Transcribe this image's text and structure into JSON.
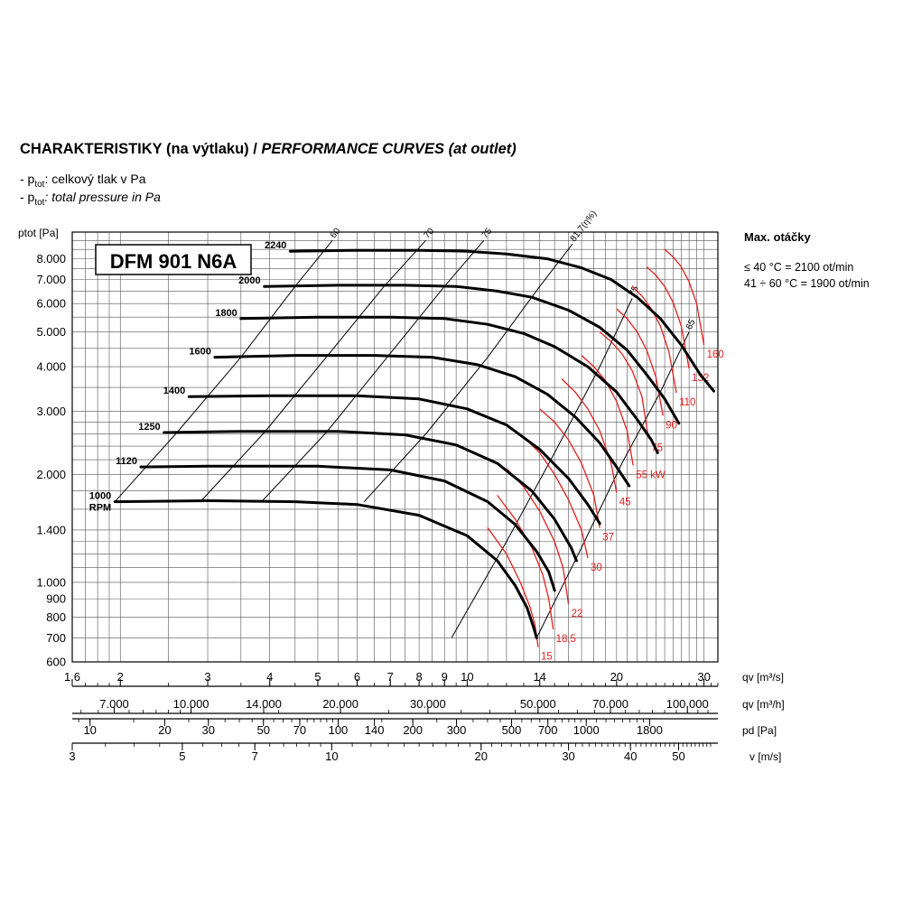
{
  "header": {
    "title_bold": "CHARAKTERISTIKY (na výtlaku) /",
    "title_italic": " PERFORMANCE CURVES (at outlet)",
    "legend_cz_prefix": "- p",
    "legend_cz_sub": "tot",
    "legend_cz_text": ": celkový tlak v Pa",
    "legend_en_prefix": "- p",
    "legend_en_sub": "tot",
    "legend_en_text": ": total pressure in Pa"
  },
  "max_speed": {
    "title": "Max. otáčky",
    "line1": "≤ 40 °C = 2100 ot/min",
    "line2": "41 ÷ 60 °C = 1900 ot/min"
  },
  "chart_data": {
    "type": "line",
    "title": "DFM 901 N6A",
    "y_axis_label": "ptot [Pa]",
    "y_scale": "log",
    "y_range": [
      600,
      9500
    ],
    "y_ticks": [
      600,
      700,
      800,
      900,
      1000,
      1400,
      2000,
      3000,
      4000,
      5000,
      6000,
      7000,
      8000
    ],
    "y_tick_labels": [
      "600",
      "700",
      "800",
      "900",
      "1.000",
      "1.400",
      "2.000",
      "3.000",
      "4.000",
      "5.000",
      "6.000",
      "7.000",
      "8.000"
    ],
    "x_scale": "log",
    "x_range": [
      1.6,
      32
    ],
    "x_axes": [
      {
        "label": "qv [m³/s]",
        "ticks": [
          1.6,
          2,
          3,
          4,
          5,
          6,
          7,
          8,
          9,
          10,
          14,
          20,
          30
        ],
        "tick_labels": [
          "1.6",
          "2",
          "3",
          "4",
          "5",
          "6",
          "7",
          "8",
          "9",
          "10",
          "14",
          "20",
          "30"
        ]
      },
      {
        "label": "qv [m³/h]",
        "ticks": [
          7000,
          10000,
          14000,
          20000,
          30000,
          50000,
          70000,
          100000
        ],
        "tick_labels": [
          "7.000",
          "10.000",
          "14.000",
          "20.000",
          "30.000",
          "50.000",
          "70.000",
          "100.000"
        ]
      },
      {
        "label": "pd [Pa]",
        "ticks": [
          10,
          20,
          30,
          50,
          70,
          100,
          140,
          200,
          300,
          500,
          700,
          1000,
          1800
        ],
        "tick_labels": [
          "10",
          "20",
          "30",
          "50",
          "70",
          "100",
          "140",
          "200",
          "300",
          "500",
          "700",
          "1000",
          "1800"
        ]
      },
      {
        "label": "v [m/s]",
        "ticks": [
          3,
          5,
          7,
          10,
          20,
          30,
          40,
          50
        ],
        "tick_labels": [
          "3",
          "5",
          "7",
          "10",
          "20",
          "30",
          "40",
          "50"
        ]
      }
    ],
    "speed_curves": [
      {
        "name": "2240",
        "start_pressure": 8400,
        "points": [
          [
            4.4,
            8400
          ],
          [
            6.0,
            8450
          ],
          [
            8.0,
            8450
          ],
          [
            10.0,
            8400
          ],
          [
            12.0,
            8250
          ],
          [
            14.5,
            8000
          ],
          [
            17.0,
            7550
          ],
          [
            19.5,
            7000
          ],
          [
            22.0,
            6250
          ],
          [
            24.5,
            5450
          ],
          [
            27.0,
            4600
          ],
          [
            29.5,
            3800
          ],
          [
            31.4,
            3420
          ]
        ]
      },
      {
        "name": "2000",
        "start_pressure": 6700,
        "points": [
          [
            3.9,
            6700
          ],
          [
            5.5,
            6750
          ],
          [
            7.5,
            6750
          ],
          [
            9.5,
            6700
          ],
          [
            11.5,
            6500
          ],
          [
            13.5,
            6250
          ],
          [
            16.0,
            5750
          ],
          [
            18.5,
            5150
          ],
          [
            21.0,
            4450
          ],
          [
            23.0,
            3800
          ],
          [
            25.0,
            3250
          ],
          [
            26.7,
            2780
          ]
        ]
      },
      {
        "name": "1800",
        "start_pressure": 5450,
        "points": [
          [
            3.5,
            5450
          ],
          [
            5.0,
            5500
          ],
          [
            7.0,
            5500
          ],
          [
            9.0,
            5450
          ],
          [
            11.0,
            5250
          ],
          [
            13.0,
            4950
          ],
          [
            15.0,
            4550
          ],
          [
            17.5,
            4000
          ],
          [
            20.0,
            3400
          ],
          [
            22.0,
            2850
          ],
          [
            23.5,
            2500
          ],
          [
            24.2,
            2300
          ]
        ]
      },
      {
        "name": "1600",
        "start_pressure": 4250,
        "points": [
          [
            3.1,
            4250
          ],
          [
            4.5,
            4300
          ],
          [
            6.5,
            4300
          ],
          [
            8.5,
            4250
          ],
          [
            10.5,
            4050
          ],
          [
            12.5,
            3750
          ],
          [
            14.5,
            3350
          ],
          [
            16.5,
            2900
          ],
          [
            18.5,
            2450
          ],
          [
            20.0,
            2100
          ],
          [
            21.2,
            1860
          ]
        ]
      },
      {
        "name": "1400",
        "start_pressure": 3300,
        "points": [
          [
            2.75,
            3300
          ],
          [
            4.0,
            3320
          ],
          [
            6.0,
            3320
          ],
          [
            8.0,
            3250
          ],
          [
            10.0,
            3050
          ],
          [
            12.0,
            2750
          ],
          [
            14.0,
            2350
          ],
          [
            16.0,
            1950
          ],
          [
            17.5,
            1650
          ],
          [
            18.5,
            1460
          ]
        ]
      },
      {
        "name": "1250",
        "start_pressure": 2620,
        "points": [
          [
            2.45,
            2620
          ],
          [
            3.5,
            2640
          ],
          [
            5.5,
            2640
          ],
          [
            7.5,
            2580
          ],
          [
            9.5,
            2420
          ],
          [
            11.5,
            2150
          ],
          [
            13.5,
            1800
          ],
          [
            15.0,
            1500
          ],
          [
            16.2,
            1250
          ],
          [
            16.6,
            1150
          ]
        ]
      },
      {
        "name": "1120",
        "start_pressure": 2100,
        "points": [
          [
            2.2,
            2100
          ],
          [
            3.0,
            2110
          ],
          [
            5.0,
            2110
          ],
          [
            7.0,
            2060
          ],
          [
            9.0,
            1920
          ],
          [
            11.0,
            1680
          ],
          [
            12.5,
            1450
          ],
          [
            13.8,
            1220
          ],
          [
            14.6,
            1070
          ],
          [
            15.0,
            950
          ]
        ]
      },
      {
        "name": "1000",
        "start_pressure": 1680,
        "points": [
          [
            1.95,
            1680
          ],
          [
            3.0,
            1690
          ],
          [
            4.5,
            1680
          ],
          [
            6.0,
            1650
          ],
          [
            8.0,
            1540
          ],
          [
            10.0,
            1350
          ],
          [
            11.5,
            1150
          ],
          [
            12.5,
            980
          ],
          [
            13.2,
            850
          ],
          [
            13.6,
            750
          ],
          [
            13.8,
            700
          ]
        ]
      }
    ],
    "rpm_unit_label": "RPM",
    "power_curves": [
      {
        "name": "15",
        "points": [
          [
            11.0,
            1420
          ],
          [
            12.0,
            1200
          ],
          [
            12.8,
            1000
          ],
          [
            13.4,
            850
          ],
          [
            13.7,
            760
          ],
          [
            13.9,
            660
          ]
        ]
      },
      {
        "name": "18,5",
        "points": [
          [
            11.5,
            1750
          ],
          [
            12.5,
            1500
          ],
          [
            13.5,
            1250
          ],
          [
            14.2,
            1050
          ],
          [
            14.6,
            900
          ],
          [
            14.9,
            740
          ]
        ]
      },
      {
        "name": "22",
        "points": [
          [
            12.0,
            2080
          ],
          [
            13.0,
            1850
          ],
          [
            14.0,
            1580
          ],
          [
            15.0,
            1300
          ],
          [
            15.6,
            1100
          ],
          [
            16.0,
            870
          ]
        ]
      },
      {
        "name": "30",
        "points": [
          [
            13.0,
            2540
          ],
          [
            14.0,
            2300
          ],
          [
            15.0,
            2000
          ],
          [
            16.0,
            1700
          ],
          [
            17.0,
            1400
          ],
          [
            17.5,
            1170
          ]
        ]
      },
      {
        "name": "37",
        "points": [
          [
            14.0,
            3050
          ],
          [
            15.0,
            2800
          ],
          [
            16.0,
            2500
          ],
          [
            17.0,
            2150
          ],
          [
            18.0,
            1750
          ],
          [
            18.5,
            1420
          ]
        ]
      },
      {
        "name": "45",
        "points": [
          [
            15.5,
            3700
          ],
          [
            16.5,
            3400
          ],
          [
            17.5,
            3050
          ],
          [
            18.5,
            2650
          ],
          [
            19.5,
            2150
          ],
          [
            20.0,
            1780
          ]
        ]
      },
      {
        "name": "55 kW",
        "points": [
          [
            17.0,
            4300
          ],
          [
            18.0,
            4000
          ],
          [
            19.0,
            3650
          ],
          [
            20.0,
            3200
          ],
          [
            21.0,
            2650
          ],
          [
            21.6,
            2120
          ]
        ]
      },
      {
        "name": "75",
        "points": [
          [
            18.5,
            5000
          ],
          [
            19.5,
            4700
          ],
          [
            20.5,
            4350
          ],
          [
            21.5,
            3900
          ],
          [
            22.5,
            3300
          ],
          [
            23.2,
            2520
          ]
        ]
      },
      {
        "name": "90",
        "points": [
          [
            20.0,
            5800
          ],
          [
            21.0,
            5450
          ],
          [
            22.0,
            5000
          ],
          [
            23.0,
            4450
          ],
          [
            24.0,
            3750
          ],
          [
            24.8,
            2920
          ]
        ]
      },
      {
        "name": "110",
        "points": [
          [
            21.5,
            6700
          ],
          [
            22.5,
            6300
          ],
          [
            23.5,
            5800
          ],
          [
            24.5,
            5200
          ],
          [
            25.5,
            4400
          ],
          [
            26.4,
            3380
          ]
        ]
      },
      {
        "name": "132",
        "points": [
          [
            23.0,
            7600
          ],
          [
            24.0,
            7200
          ],
          [
            25.0,
            6700
          ],
          [
            26.0,
            6050
          ],
          [
            27.0,
            5200
          ],
          [
            28.0,
            3950
          ]
        ]
      },
      {
        "name": "160",
        "points": [
          [
            25.0,
            8500
          ],
          [
            26.0,
            8100
          ],
          [
            27.0,
            7600
          ],
          [
            28.0,
            6900
          ],
          [
            29.0,
            6000
          ],
          [
            30.0,
            4600
          ]
        ]
      }
    ],
    "efficiency_lines": [
      {
        "name": "60",
        "points": [
          [
            1.95,
            1680
          ],
          [
            2.6,
            2620
          ],
          [
            3.5,
            4250
          ],
          [
            4.5,
            6700
          ],
          [
            5.35,
            9000
          ]
        ]
      },
      {
        "name": "70",
        "points": [
          [
            2.9,
            1680
          ],
          [
            3.9,
            2620
          ],
          [
            5.2,
            4250
          ],
          [
            6.8,
            6700
          ],
          [
            8.25,
            9000
          ]
        ]
      },
      {
        "name": "75",
        "points": [
          [
            3.85,
            1680
          ],
          [
            5.2,
            2620
          ],
          [
            6.9,
            4250
          ],
          [
            9.0,
            6700
          ],
          [
            10.8,
            9000
          ]
        ]
      },
      {
        "name": "81,7(η%)",
        "points": [
          [
            6.2,
            1680
          ],
          [
            8.3,
            2620
          ],
          [
            11.0,
            4250
          ],
          [
            14.0,
            6700
          ],
          [
            16.3,
            8800
          ]
        ]
      },
      {
        "name": "75",
        "points": [
          [
            9.3,
            700
          ],
          [
            12.0,
            1300
          ],
          [
            15.0,
            2300
          ],
          [
            18.5,
            4000
          ],
          [
            21.5,
            6200
          ]
        ]
      },
      {
        "name": "65",
        "points": [
          [
            13.8,
            700
          ],
          [
            17.0,
            1250
          ],
          [
            20.5,
            2150
          ],
          [
            24.5,
            3400
          ],
          [
            28.0,
            5000
          ]
        ]
      }
    ],
    "grid": true
  }
}
